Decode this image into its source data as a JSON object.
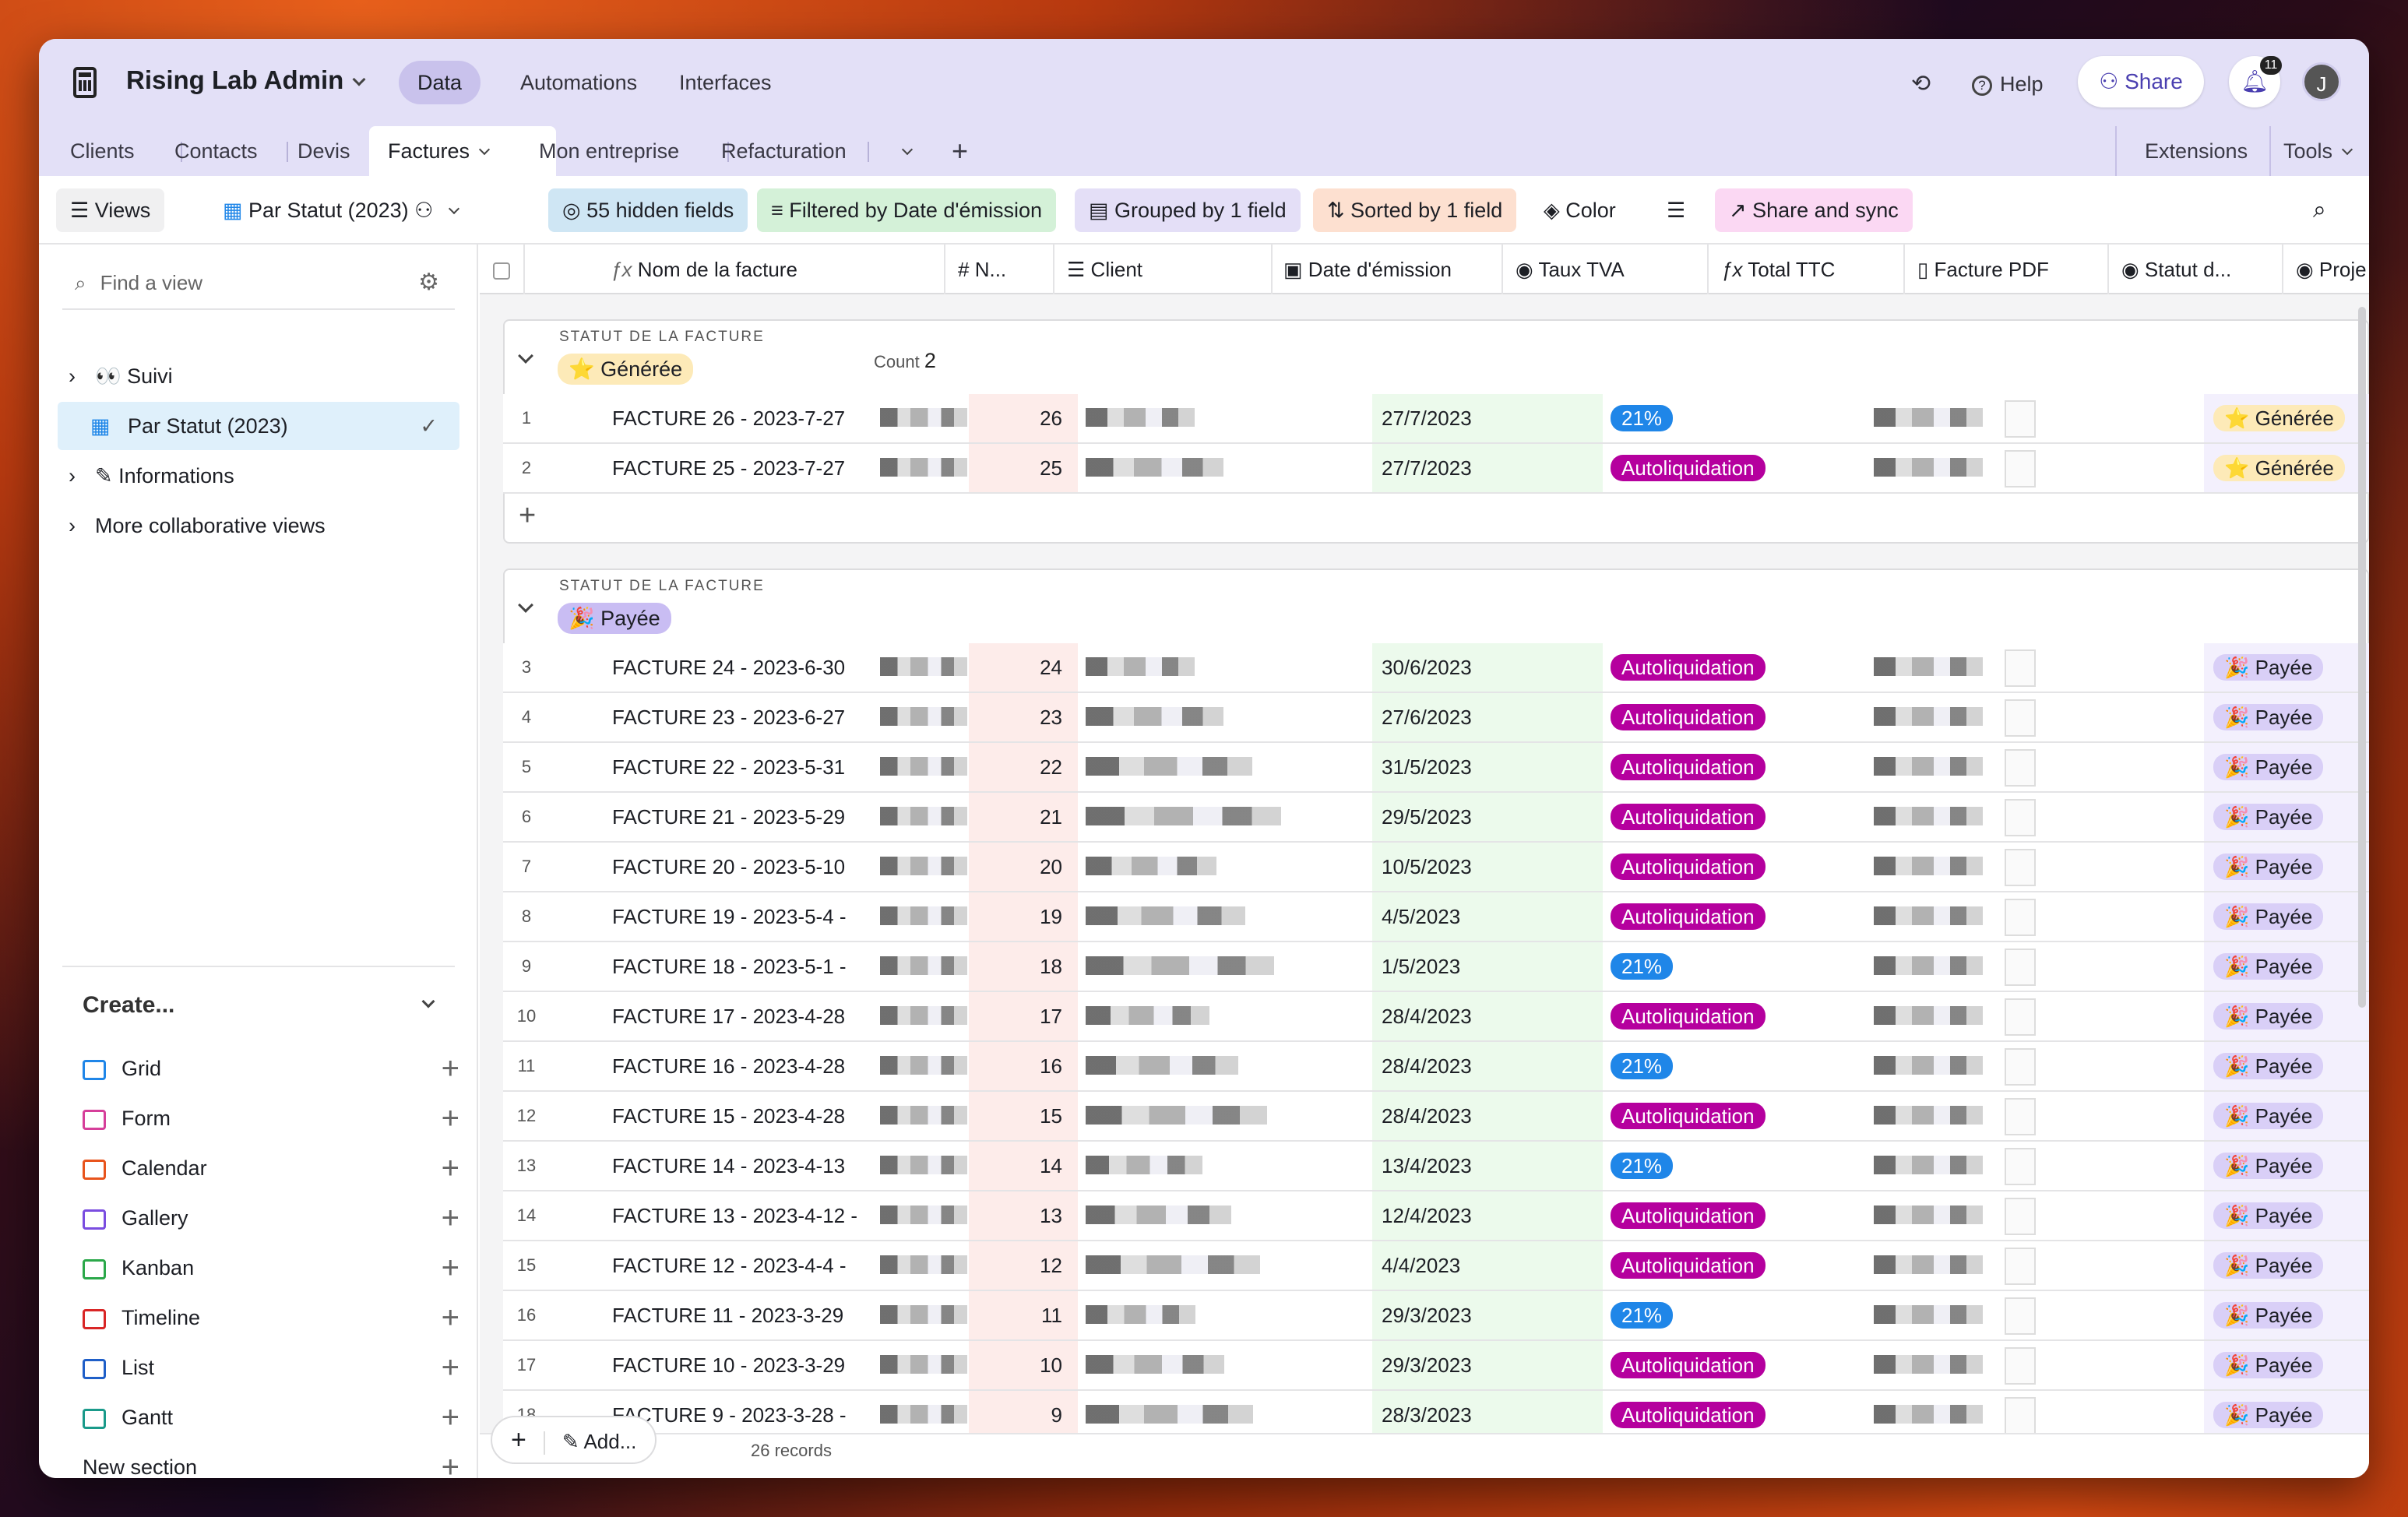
{
  "app": {
    "title": "Rising Lab Admin",
    "nav": [
      "Data",
      "Automations",
      "Interfaces"
    ],
    "help": "Help",
    "share": "Share",
    "notif_count": "11",
    "avatar": "J"
  },
  "tabs": [
    "Clients",
    "Contacts",
    "Devis",
    "Factures",
    "Mon entreprise",
    "Refacturation"
  ],
  "tabs_right": [
    "Extensions",
    "Tools"
  ],
  "toolbar": {
    "views": "Views",
    "view_name": "Par Statut (2023)",
    "hidden": "55 hidden fields",
    "filtered": "Filtered by Date d'émission",
    "grouped": "Grouped by 1 field",
    "sorted": "Sorted by 1 field",
    "color": "Color",
    "share_sync": "Share and sync"
  },
  "sidebar": {
    "find_placeholder": "Find a view",
    "items": [
      "👀 Suivi",
      "Par Statut (2023)",
      "Informations",
      "More collaborative views"
    ],
    "create": "Create...",
    "create_items": [
      "Grid",
      "Form",
      "Calendar",
      "Gallery",
      "Kanban",
      "Timeline",
      "List",
      "Gantt"
    ],
    "new_section": "New section"
  },
  "columns": [
    "Nom de la facture",
    "N...",
    "Client",
    "Date d'émission",
    "Taux TVA",
    "Total TTC",
    "Facture PDF",
    "Statut d...",
    "Proje"
  ],
  "groups": [
    {
      "label": "STATUT DE LA FACTURE",
      "status": "⭐ Générée",
      "count_label": "Count",
      "count": "2"
    },
    {
      "label": "STATUT DE LA FACTURE",
      "status": "🎉 Payée"
    }
  ],
  "rows_gen": [
    {
      "n": "1",
      "name": "FACTURE 26 - 2023-7-27",
      "num": "26",
      "date": "27/7/2023",
      "tva": "21%",
      "status": "⭐ Générée"
    },
    {
      "n": "2",
      "name": "FACTURE 25 - 2023-7-27",
      "num": "25",
      "date": "27/7/2023",
      "tva": "Autoliquidation",
      "status": "⭐ Générée"
    }
  ],
  "rows_pay": [
    {
      "n": "3",
      "name": "FACTURE 24 - 2023-6-30",
      "num": "24",
      "date": "30/6/2023",
      "tva": "Autoliquidation",
      "status": "🎉 Payée"
    },
    {
      "n": "4",
      "name": "FACTURE 23 - 2023-6-27",
      "num": "23",
      "date": "27/6/2023",
      "tva": "Autoliquidation",
      "status": "🎉 Payée"
    },
    {
      "n": "5",
      "name": "FACTURE 22 - 2023-5-31",
      "num": "22",
      "date": "31/5/2023",
      "tva": "Autoliquidation",
      "status": "🎉 Payée"
    },
    {
      "n": "6",
      "name": "FACTURE 21 - 2023-5-29",
      "num": "21",
      "date": "29/5/2023",
      "tva": "Autoliquidation",
      "status": "🎉 Payée"
    },
    {
      "n": "7",
      "name": "FACTURE 20 - 2023-5-10",
      "num": "20",
      "date": "10/5/2023",
      "tva": "Autoliquidation",
      "status": "🎉 Payée"
    },
    {
      "n": "8",
      "name": "FACTURE 19 - 2023-5-4 -",
      "num": "19",
      "date": "4/5/2023",
      "tva": "Autoliquidation",
      "status": "🎉 Payée"
    },
    {
      "n": "9",
      "name": "FACTURE 18 - 2023-5-1 -",
      "num": "18",
      "date": "1/5/2023",
      "tva": "21%",
      "status": "🎉 Payée"
    },
    {
      "n": "10",
      "name": "FACTURE 17 - 2023-4-28",
      "num": "17",
      "date": "28/4/2023",
      "tva": "Autoliquidation",
      "status": "🎉 Payée"
    },
    {
      "n": "11",
      "name": "FACTURE 16 - 2023-4-28",
      "num": "16",
      "date": "28/4/2023",
      "tva": "21%",
      "status": "🎉 Payée"
    },
    {
      "n": "12",
      "name": "FACTURE 15 - 2023-4-28",
      "num": "15",
      "date": "28/4/2023",
      "tva": "Autoliquidation",
      "status": "🎉 Payée"
    },
    {
      "n": "13",
      "name": "FACTURE 14 - 2023-4-13",
      "num": "14",
      "date": "13/4/2023",
      "tva": "21%",
      "status": "🎉 Payée"
    },
    {
      "n": "14",
      "name": "FACTURE 13 - 2023-4-12 -",
      "num": "13",
      "date": "12/4/2023",
      "tva": "Autoliquidation",
      "status": "🎉 Payée"
    },
    {
      "n": "15",
      "name": "FACTURE 12 - 2023-4-4 -",
      "num": "12",
      "date": "4/4/2023",
      "tva": "Autoliquidation",
      "status": "🎉 Payée"
    },
    {
      "n": "16",
      "name": "FACTURE 11 - 2023-3-29",
      "num": "11",
      "date": "29/3/2023",
      "tva": "21%",
      "status": "🎉 Payée"
    },
    {
      "n": "17",
      "name": "FACTURE 10 - 2023-3-29",
      "num": "10",
      "date": "29/3/2023",
      "tva": "Autoliquidation",
      "status": "🎉 Payée"
    },
    {
      "n": "18",
      "name": "FACTURE 9 - 2023-3-28 -",
      "num": "9",
      "date": "28/3/2023",
      "tva": "Autoliquidation",
      "status": "🎉 Payée"
    }
  ],
  "footer": {
    "add": "Add...",
    "records": "26 records"
  }
}
